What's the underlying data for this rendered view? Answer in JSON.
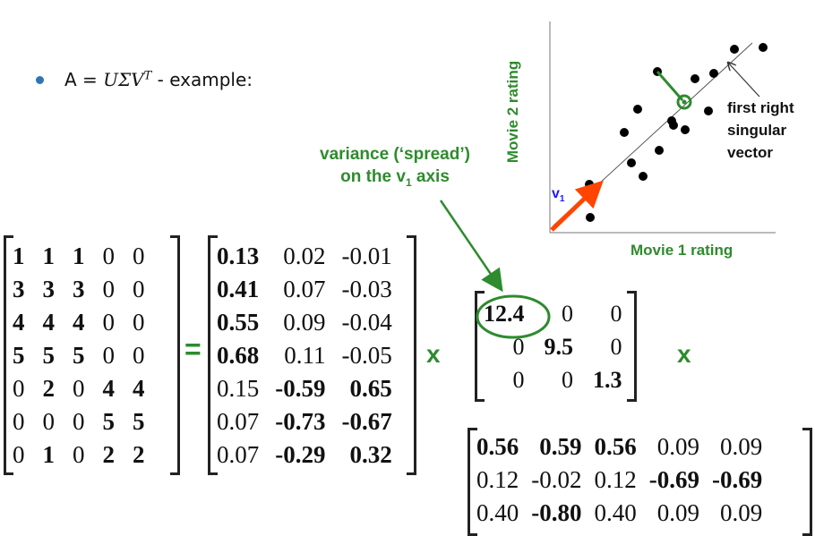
{
  "bullet": {
    "prefix": "A = ",
    "formula": "UΣV",
    "superscript": "T",
    "suffix": " - example:"
  },
  "variance_label": {
    "line1": "variance (‘spread’)",
    "line2_prefix": "on the v",
    "line2_sub": "1",
    "line2_suffix": " axis"
  },
  "plot": {
    "y_axis_label": "Movie 2 rating",
    "x_axis_label": "Movie 1 rating",
    "vector_label": "v",
    "vector_sub": "1",
    "annotation": [
      "first right",
      "singular",
      "vector"
    ],
    "colors": {
      "vector": "#ff4500",
      "projection": "#2e8b2e",
      "points": "#000000",
      "axis_label": "#2e8b2e",
      "vector_label": "#1a1aff"
    }
  },
  "matrices": {
    "A": [
      [
        {
          "v": "1",
          "b": true
        },
        {
          "v": "1",
          "b": true
        },
        {
          "v": "1",
          "b": true
        },
        {
          "v": "0",
          "b": false
        },
        {
          "v": "0",
          "b": false
        }
      ],
      [
        {
          "v": "3",
          "b": true
        },
        {
          "v": "3",
          "b": true
        },
        {
          "v": "3",
          "b": true
        },
        {
          "v": "0",
          "b": false
        },
        {
          "v": "0",
          "b": false
        }
      ],
      [
        {
          "v": "4",
          "b": true
        },
        {
          "v": "4",
          "b": true
        },
        {
          "v": "4",
          "b": true
        },
        {
          "v": "0",
          "b": false
        },
        {
          "v": "0",
          "b": false
        }
      ],
      [
        {
          "v": "5",
          "b": true
        },
        {
          "v": "5",
          "b": true
        },
        {
          "v": "5",
          "b": true
        },
        {
          "v": "0",
          "b": false
        },
        {
          "v": "0",
          "b": false
        }
      ],
      [
        {
          "v": "0",
          "b": false
        },
        {
          "v": "2",
          "b": true
        },
        {
          "v": "0",
          "b": false
        },
        {
          "v": "4",
          "b": true
        },
        {
          "v": "4",
          "b": true
        }
      ],
      [
        {
          "v": "0",
          "b": false
        },
        {
          "v": "0",
          "b": false
        },
        {
          "v": "0",
          "b": false
        },
        {
          "v": "5",
          "b": true
        },
        {
          "v": "5",
          "b": true
        }
      ],
      [
        {
          "v": "0",
          "b": false
        },
        {
          "v": "1",
          "b": true
        },
        {
          "v": "0",
          "b": false
        },
        {
          "v": "2",
          "b": true
        },
        {
          "v": "2",
          "b": true
        }
      ]
    ],
    "U": [
      [
        {
          "v": "0.13",
          "b": true
        },
        {
          "v": "0.02",
          "b": false
        },
        {
          "v": "-0.01",
          "b": false
        }
      ],
      [
        {
          "v": "0.41",
          "b": true
        },
        {
          "v": "0.07",
          "b": false
        },
        {
          "v": "-0.03",
          "b": false
        }
      ],
      [
        {
          "v": "0.55",
          "b": true
        },
        {
          "v": "0.09",
          "b": false
        },
        {
          "v": "-0.04",
          "b": false
        }
      ],
      [
        {
          "v": "0.68",
          "b": true
        },
        {
          "v": "0.11",
          "b": false
        },
        {
          "v": "-0.05",
          "b": false
        }
      ],
      [
        {
          "v": "0.15",
          "b": false
        },
        {
          "v": "-0.59",
          "b": true
        },
        {
          "v": "0.65",
          "b": true
        }
      ],
      [
        {
          "v": "0.07",
          "b": false
        },
        {
          "v": "-0.73",
          "b": true
        },
        {
          "v": "-0.67",
          "b": true
        }
      ],
      [
        {
          "v": "0.07",
          "b": false
        },
        {
          "v": "-0.29",
          "b": true
        },
        {
          "v": "0.32",
          "b": true
        }
      ]
    ],
    "Sigma": [
      [
        {
          "v": "12.4",
          "b": true
        },
        {
          "v": "0",
          "b": false
        },
        {
          "v": "0",
          "b": false
        }
      ],
      [
        {
          "v": "0",
          "b": false
        },
        {
          "v": "9.5",
          "b": true
        },
        {
          "v": "0",
          "b": false
        }
      ],
      [
        {
          "v": "0",
          "b": false
        },
        {
          "v": "0",
          "b": false
        },
        {
          "v": "1.3",
          "b": true
        }
      ]
    ],
    "VT": [
      [
        {
          "v": "0.56",
          "b": true
        },
        {
          "v": "0.59",
          "b": true
        },
        {
          "v": "0.56",
          "b": true
        },
        {
          "v": "0.09",
          "b": false
        },
        {
          "v": "0.09",
          "b": false
        }
      ],
      [
        {
          "v": "0.12",
          "b": false
        },
        {
          "v": "-0.02",
          "b": false
        },
        {
          "v": "0.12",
          "b": false
        },
        {
          "v": "-0.69",
          "b": true
        },
        {
          "v": "-0.69",
          "b": true
        }
      ],
      [
        {
          "v": "0.40",
          "b": false
        },
        {
          "v": "-0.80",
          "b": true
        },
        {
          "v": "0.40",
          "b": false
        },
        {
          "v": "0.09",
          "b": false
        },
        {
          "v": "0.09",
          "b": false
        }
      ]
    ]
  },
  "operators": {
    "equals": "=",
    "times1": "x",
    "times2": "x"
  }
}
